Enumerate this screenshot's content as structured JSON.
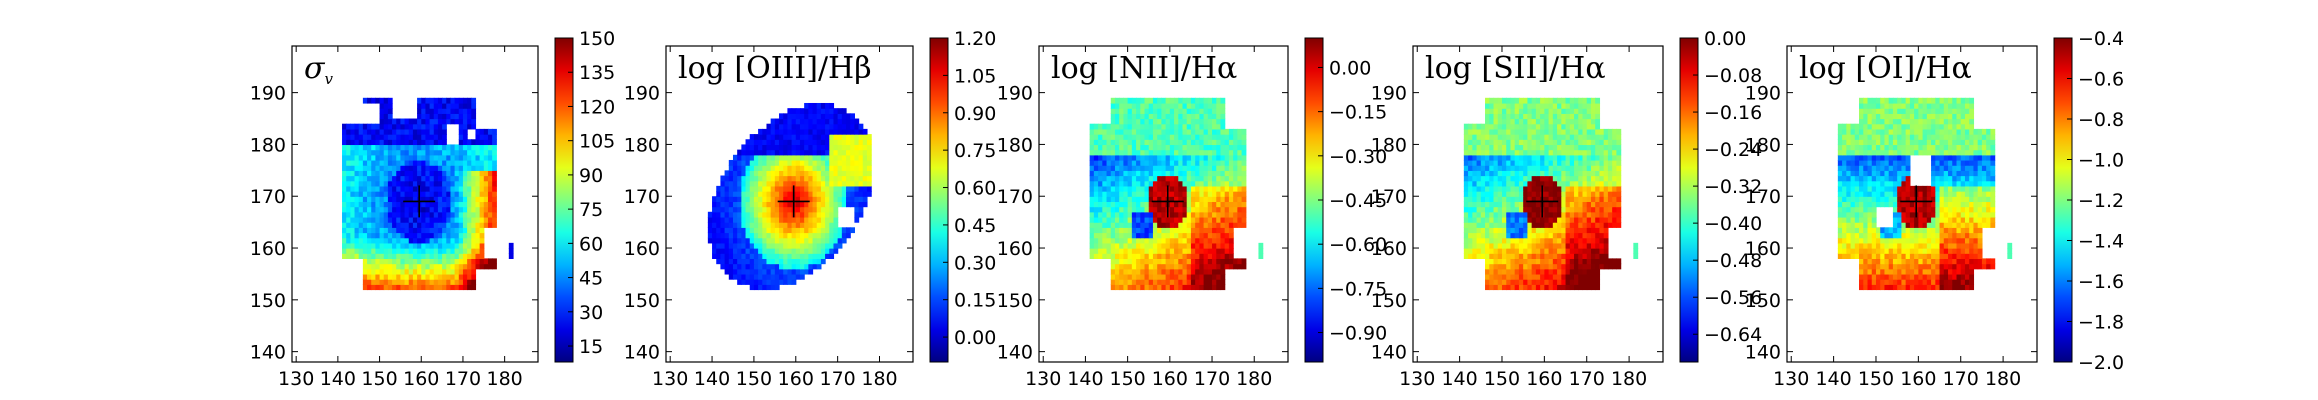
{
  "chart_data": [
    {
      "type": "heatmap",
      "title": "σ_v",
      "title_main": "σ",
      "title_sub": "v",
      "x_ticks": [
        "130",
        "140",
        "150",
        "160",
        "170",
        "180"
      ],
      "y_ticks": [
        "140",
        "150",
        "160",
        "170",
        "180",
        "190"
      ],
      "xlim": [
        129,
        188
      ],
      "ylim": [
        138,
        199
      ],
      "colorbar": {
        "ticks": [
          "15",
          "30",
          "45",
          "60",
          "75",
          "90",
          "105",
          "120",
          "135",
          "150"
        ],
        "min": 8,
        "max": 150
      },
      "center_marker": [
        159.5,
        169
      ],
      "map_mode": "sigma",
      "map_extent": {
        "x": [
          141,
          178
        ],
        "y": [
          152,
          189
        ]
      }
    },
    {
      "type": "heatmap",
      "title": "log [OIII]/Hβ",
      "x_ticks": [
        "130",
        "140",
        "150",
        "160",
        "170",
        "180"
      ],
      "y_ticks": [
        "140",
        "150",
        "160",
        "170",
        "180",
        "190"
      ],
      "xlim": [
        129,
        188
      ],
      "ylim": [
        138,
        199
      ],
      "colorbar": {
        "ticks": [
          "0.00",
          "0.15",
          "0.30",
          "0.45",
          "0.60",
          "0.75",
          "0.90",
          "1.05",
          "1.20"
        ],
        "min": -0.1,
        "max": 1.2
      },
      "center_marker": [
        159.5,
        169
      ],
      "map_mode": "oiii",
      "map_extent": {
        "x": [
          139,
          178
        ],
        "y": [
          152,
          189
        ]
      }
    },
    {
      "type": "heatmap",
      "title": "log [NII]/Hα",
      "x_ticks": [
        "130",
        "140",
        "150",
        "160",
        "170",
        "180"
      ],
      "y_ticks": [
        "140",
        "150",
        "160",
        "170",
        "180",
        "190"
      ],
      "xlim": [
        129,
        188
      ],
      "ylim": [
        138,
        199
      ],
      "colorbar": {
        "ticks": [
          "-0.90",
          "-0.75",
          "-0.60",
          "-0.45",
          "-0.30",
          "-0.15",
          "0.00"
        ],
        "min": -1.0,
        "max": 0.1
      },
      "center_marker": [
        159.5,
        169
      ],
      "map_mode": "nii",
      "map_extent": {
        "x": [
          141,
          178
        ],
        "y": [
          152,
          189
        ]
      }
    },
    {
      "type": "heatmap",
      "title": "log [SII]/Hα",
      "x_ticks": [
        "130",
        "140",
        "150",
        "160",
        "170",
        "180"
      ],
      "y_ticks": [
        "140",
        "150",
        "160",
        "170",
        "180",
        "190"
      ],
      "xlim": [
        129,
        188
      ],
      "ylim": [
        138,
        199
      ],
      "colorbar": {
        "ticks": [
          "-0.64",
          "-0.56",
          "-0.48",
          "-0.40",
          "-0.32",
          "-0.24",
          "-0.16",
          "-0.08",
          "0.00"
        ],
        "min": -0.7,
        "max": 0.0
      },
      "center_marker": [
        159.5,
        169
      ],
      "map_mode": "sii",
      "map_extent": {
        "x": [
          141,
          178
        ],
        "y": [
          152,
          189
        ]
      }
    },
    {
      "type": "heatmap",
      "title": "log [OI]/Hα",
      "x_ticks": [
        "130",
        "140",
        "150",
        "160",
        "170",
        "180"
      ],
      "y_ticks": [
        "140",
        "150",
        "160",
        "170",
        "180",
        "190"
      ],
      "xlim": [
        129,
        188
      ],
      "ylim": [
        138,
        199
      ],
      "colorbar": {
        "ticks": [
          "-2.0",
          "-1.8",
          "-1.6",
          "-1.4",
          "-1.2",
          "-1.0",
          "-0.8",
          "-0.6",
          "-0.4"
        ],
        "min": -2.0,
        "max": -0.4
      },
      "center_marker": [
        159.5,
        169
      ],
      "map_mode": "oi",
      "map_extent": {
        "x": [
          141,
          178
        ],
        "y": [
          152,
          189
        ]
      }
    }
  ]
}
